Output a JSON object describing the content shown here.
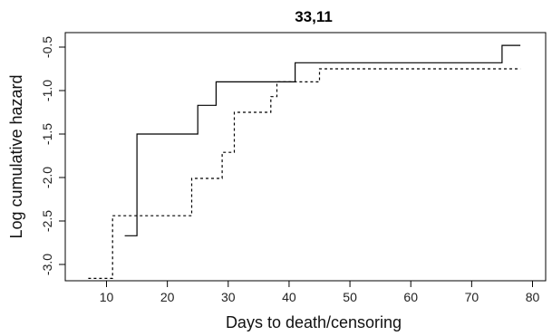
{
  "chart_data": {
    "type": "line",
    "title": "33,11",
    "xlabel": "Days to death/censoring",
    "ylabel": "Log cumulative hazard",
    "xlim": [
      5,
      80
    ],
    "ylim": [
      -3.3,
      -0.4
    ],
    "x_ticks": [
      10,
      20,
      30,
      40,
      50,
      60,
      70,
      80
    ],
    "y_ticks": [
      -3.0,
      -2.5,
      -2.0,
      -1.5,
      -1.0,
      -0.5
    ],
    "x_tick_labels": [
      "10",
      "20",
      "30",
      "40",
      "50",
      "60",
      "70",
      "80"
    ],
    "y_tick_labels": [
      "-3.0",
      "-2.5",
      "-2.0",
      "-1.5",
      "-1.0",
      "-0.5"
    ],
    "grid": false,
    "series": [
      {
        "style": "solid",
        "color": "#000000",
        "step_points": [
          [
            13,
            -2.67
          ],
          [
            15,
            -2.67
          ],
          [
            15,
            -1.5
          ],
          [
            25,
            -1.5
          ],
          [
            25,
            -1.17
          ],
          [
            28,
            -1.17
          ],
          [
            28,
            -0.9
          ],
          [
            41,
            -0.9
          ],
          [
            41,
            -0.68
          ],
          [
            75,
            -0.68
          ],
          [
            75,
            -0.48
          ],
          [
            78,
            -0.48
          ]
        ]
      },
      {
        "style": "dashed",
        "color": "#000000",
        "step_points": [
          [
            7,
            -3.16
          ],
          [
            11,
            -3.16
          ],
          [
            11,
            -2.44
          ],
          [
            24,
            -2.44
          ],
          [
            24,
            -2.01
          ],
          [
            29,
            -2.01
          ],
          [
            29,
            -1.71
          ],
          [
            31,
            -1.71
          ],
          [
            31,
            -1.25
          ],
          [
            37,
            -1.25
          ],
          [
            37,
            -1.07
          ],
          [
            38,
            -1.07
          ],
          [
            38,
            -0.9
          ],
          [
            45,
            -0.9
          ],
          [
            45,
            -0.75
          ],
          [
            78,
            -0.75
          ]
        ]
      }
    ]
  }
}
